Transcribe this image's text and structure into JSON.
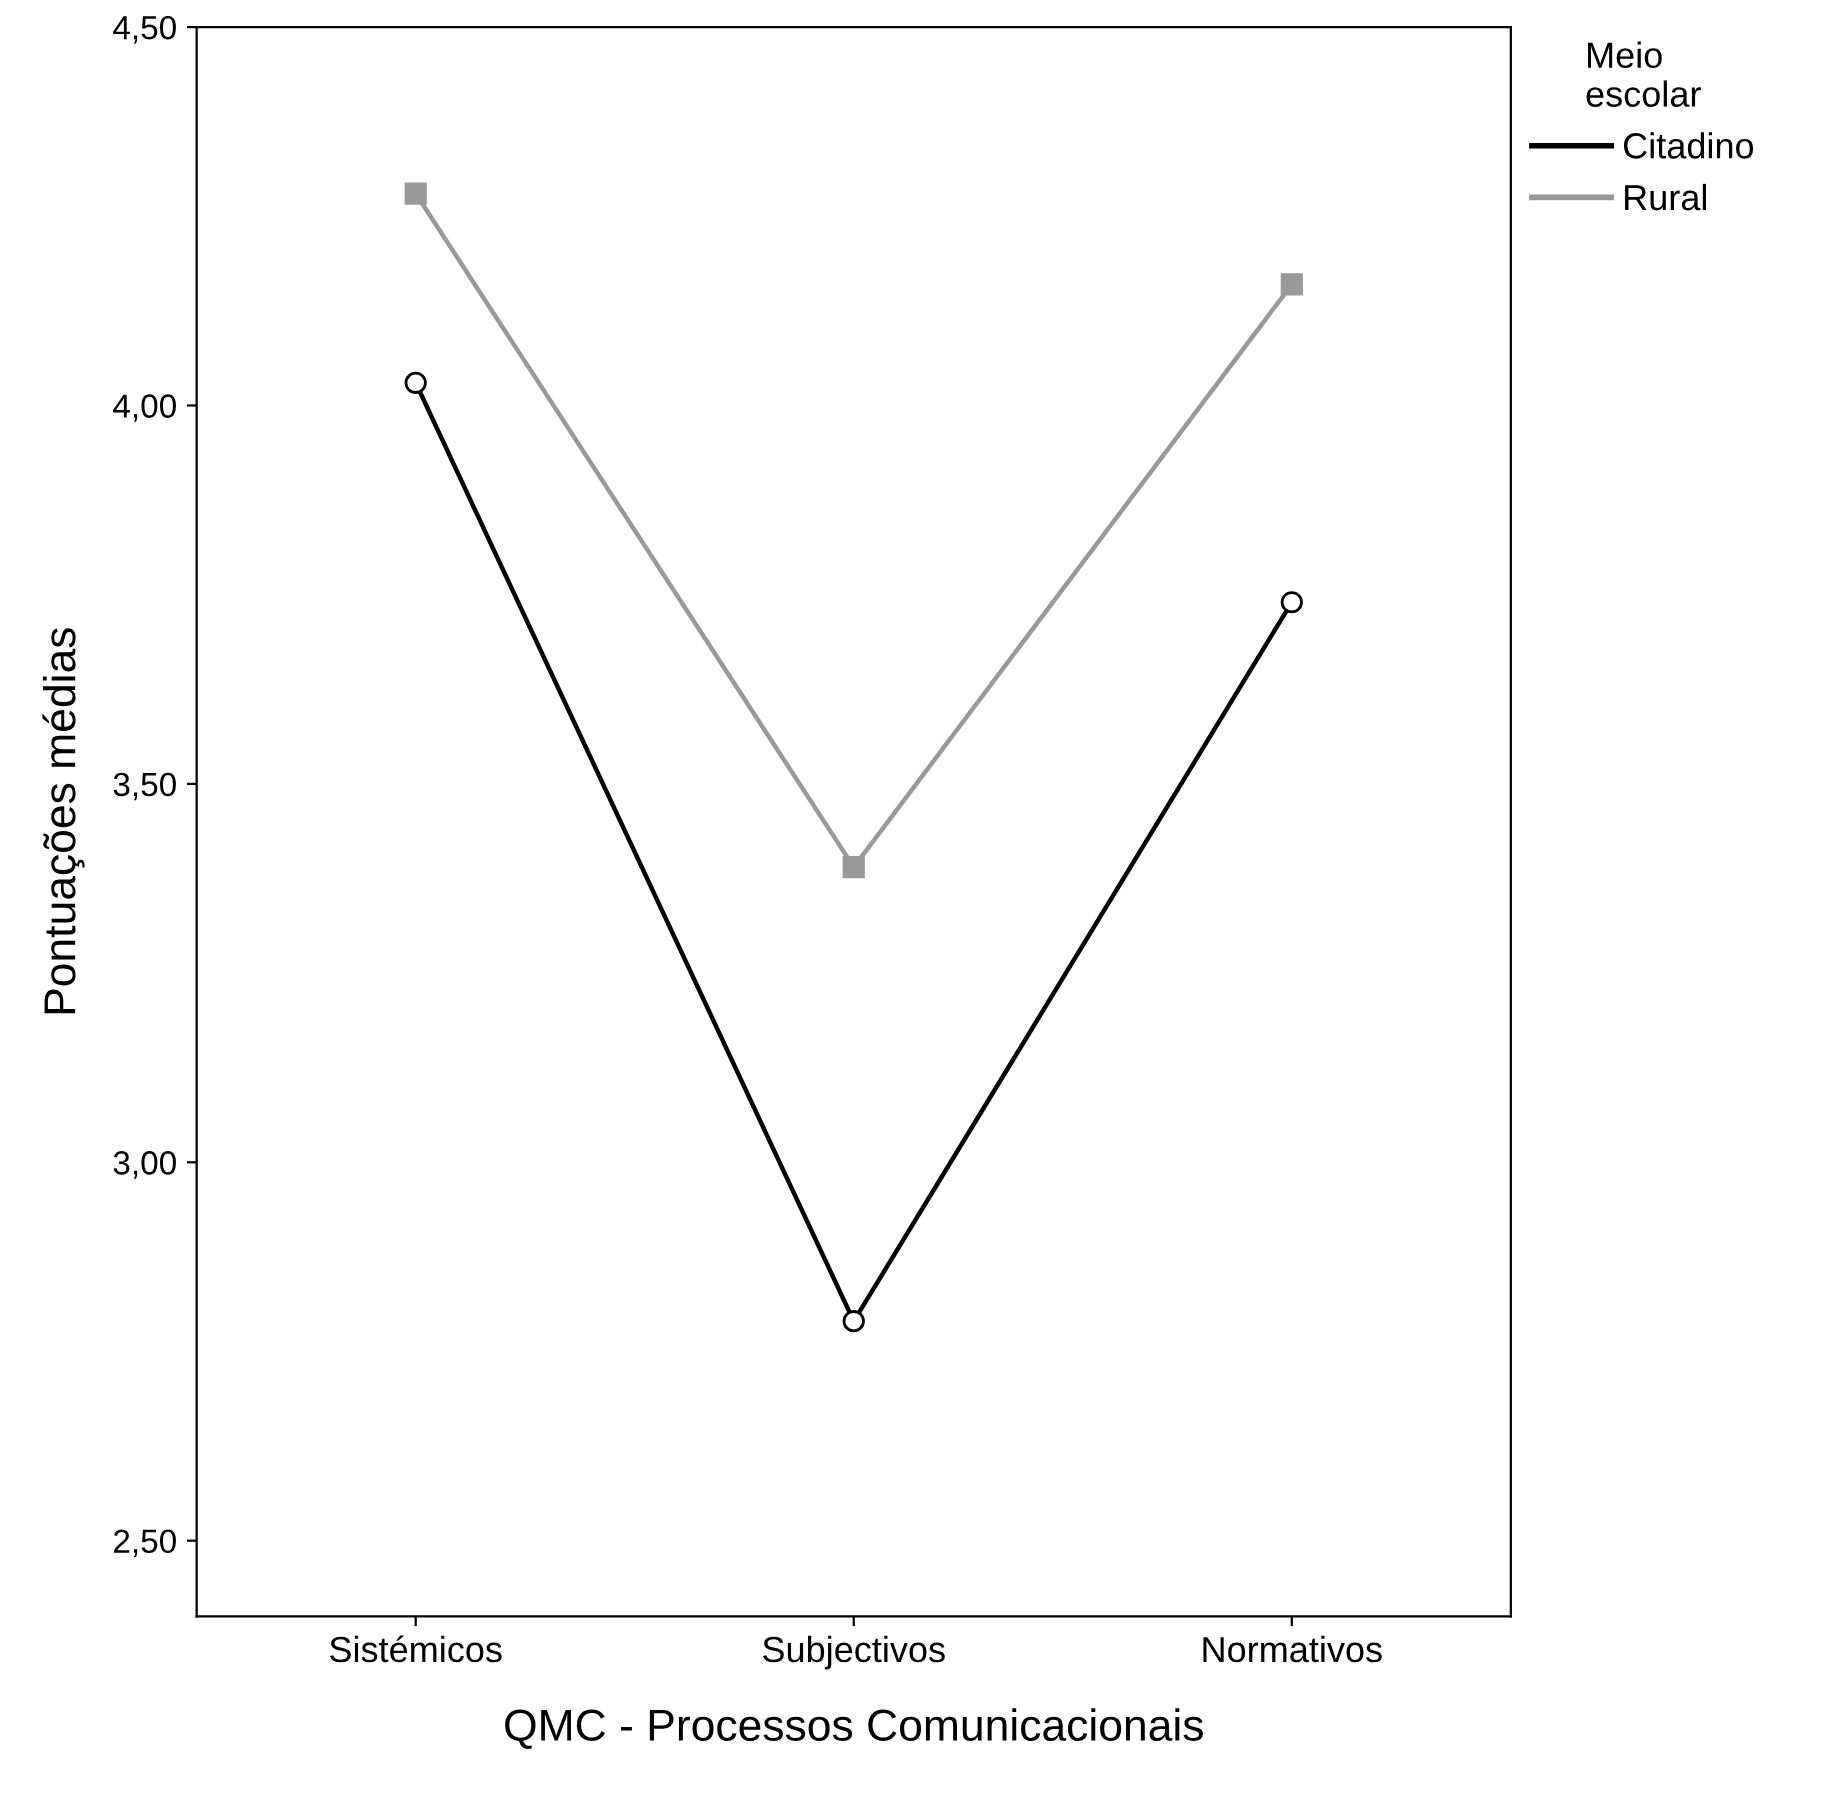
{
  "chart_data": {
    "type": "line",
    "xlabel": "QMC - Processos Comunicacionais",
    "ylabel": "Pontuações médias",
    "legend_title": "Meio\nescolar",
    "legend": "top right",
    "categories": [
      "Sistémicos",
      "Subjectivos",
      "Normativos"
    ],
    "series": [
      {
        "name": "Citadino",
        "color": "#000000",
        "marker": "circle",
        "values": [
          4.03,
          2.79,
          3.74
        ]
      },
      {
        "name": "Rural",
        "color": "#999999",
        "marker": "square",
        "values": [
          4.28,
          3.39,
          4.16
        ]
      }
    ],
    "ylim": [
      2.4,
      4.5
    ],
    "yticks": [
      {
        "value": 2.5,
        "label": "2,50"
      },
      {
        "value": 3.0,
        "label": "3,00"
      },
      {
        "value": 3.5,
        "label": "3,50"
      },
      {
        "value": 4.0,
        "label": "4,00"
      },
      {
        "value": 4.5,
        "label": "4,50"
      }
    ],
    "grid": false
  }
}
